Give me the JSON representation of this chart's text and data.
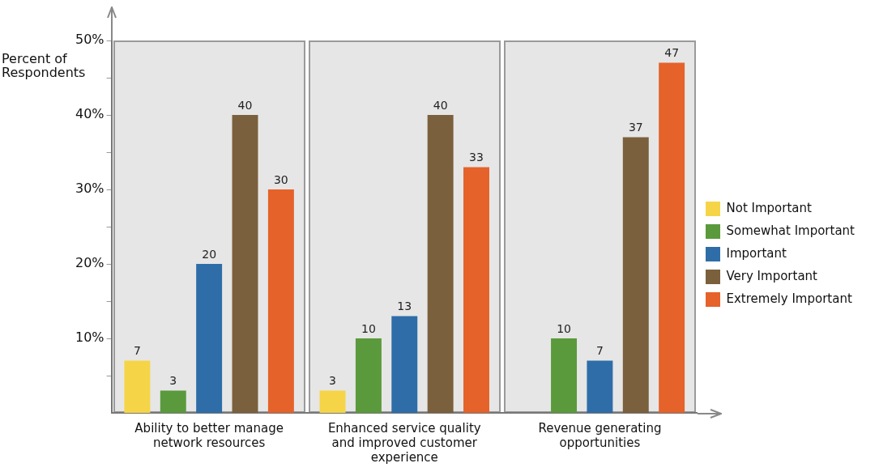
{
  "chart_data": {
    "type": "bar",
    "ylabel": "Percent of Respondents",
    "categories": [
      "Ability to better manage network resources",
      "Enhanced service quality and improved customer experience",
      "Revenue generating opportunities"
    ],
    "series": [
      {
        "name": "Not Important",
        "color": "#f5d547",
        "values": [
          7,
          3,
          null
        ]
      },
      {
        "name": "Somewhat Important",
        "color": "#5a9a3c",
        "values": [
          3,
          10,
          10
        ]
      },
      {
        "name": "Important",
        "color": "#2f6da8",
        "values": [
          20,
          13,
          7
        ]
      },
      {
        "name": "Very Important",
        "color": "#7a603c",
        "values": [
          40,
          40,
          37
        ]
      },
      {
        "name": "Extremely Important",
        "color": "#e5622a",
        "values": [
          30,
          33,
          47
        ]
      }
    ],
    "ylim": [
      0,
      50
    ],
    "yticks": [
      {
        "value": 5,
        "label": null
      },
      {
        "value": 10,
        "label": "10%"
      },
      {
        "value": 15,
        "label": null
      },
      {
        "value": 20,
        "label": "20%"
      },
      {
        "value": 25,
        "label": null
      },
      {
        "value": 30,
        "label": "30%"
      },
      {
        "value": 35,
        "label": null
      },
      {
        "value": 40,
        "label": "40%"
      },
      {
        "value": 45,
        "label": null
      },
      {
        "value": 50,
        "label": "50%"
      }
    ],
    "data_labels": true,
    "grid": false,
    "legend": "right"
  }
}
